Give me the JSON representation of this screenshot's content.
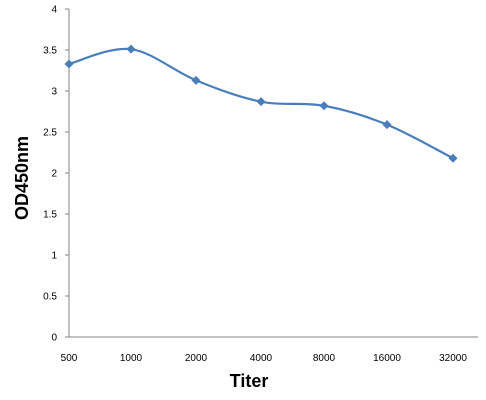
{
  "chart_data": {
    "type": "line",
    "title": "",
    "xlabel": "Titer",
    "ylabel": "OD450nm",
    "categories": [
      "500",
      "1000",
      "2000",
      "4000",
      "8000",
      "16000",
      "32000"
    ],
    "series": [
      {
        "values": [
          3.33,
          3.51,
          3.13,
          2.87,
          2.82,
          2.59,
          2.18
        ]
      }
    ],
    "ylim": [
      0,
      4
    ],
    "yticks": [
      "0",
      "0.5",
      "1",
      "1.5",
      "2",
      "2.5",
      "3",
      "3.5",
      "4"
    ],
    "grid": false,
    "legend": "none",
    "line_color": "#4a7ebb",
    "marker": "diamond"
  }
}
